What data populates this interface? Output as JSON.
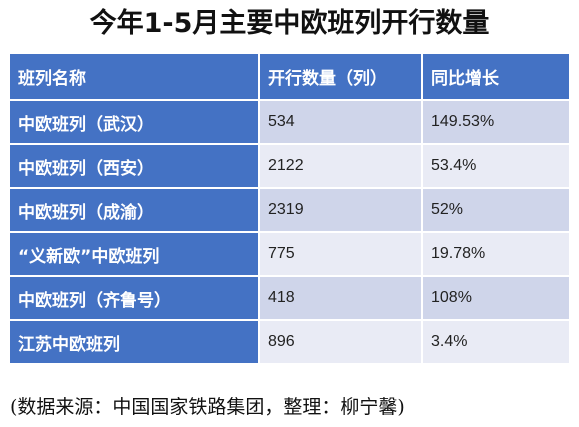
{
  "title": "今年1-5月主要中欧班列开行数量",
  "table": {
    "headers": [
      "班列名称",
      "开行数量（列）",
      "同比增长"
    ],
    "rows": [
      [
        "中欧班列（武汉）",
        "534",
        "149.53%"
      ],
      [
        "中欧班列（西安）",
        "2122",
        "53.4%"
      ],
      [
        "中欧班列（成渝）",
        "2319",
        "52%"
      ],
      [
        "“义新欧”中欧班列",
        "775",
        "19.78%"
      ],
      [
        "中欧班列（齐鲁号）",
        "418",
        "108%"
      ],
      [
        "江苏中欧班列",
        "896",
        "3.4%"
      ]
    ]
  },
  "source_note": "(数据来源：中国国家铁路集团，整理：柳宁馨)",
  "colors": {
    "header_bg": "#4472c4",
    "row_odd": "#cfd5ea",
    "row_even": "#e9ebf5"
  }
}
